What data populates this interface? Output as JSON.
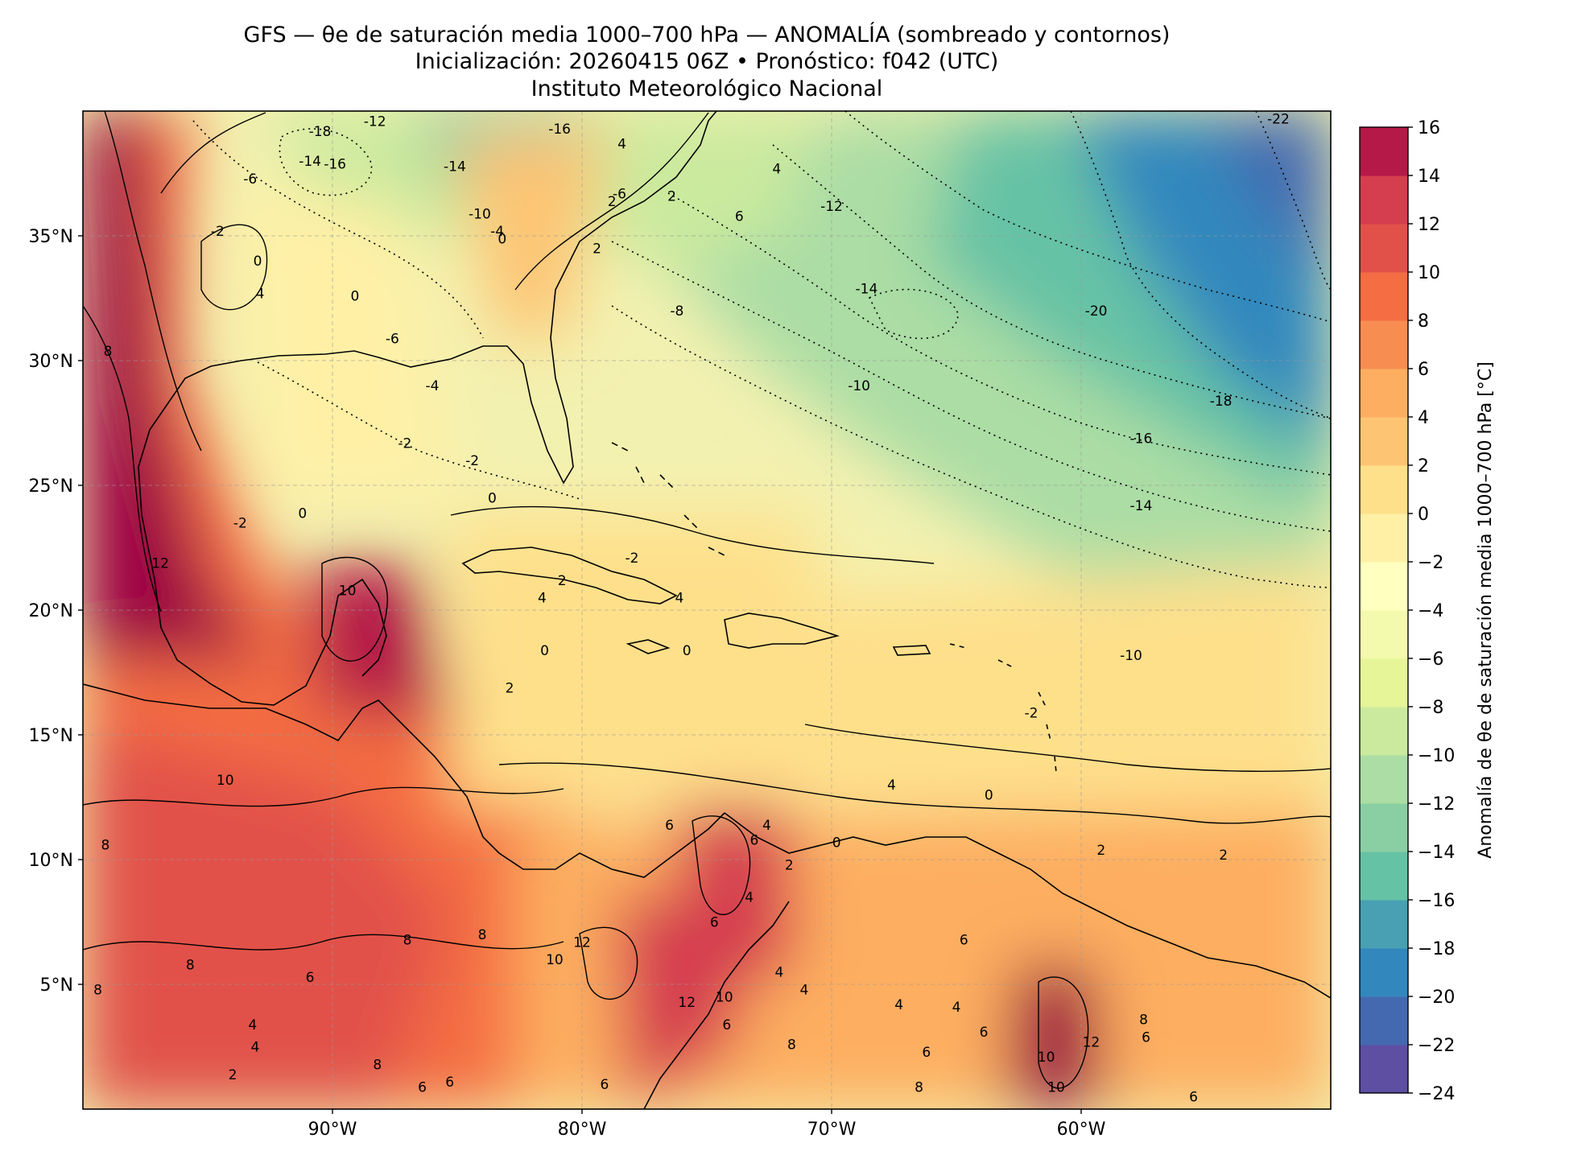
{
  "title": {
    "line1": "GFS — θe de saturación media 1000–700 hPa — ANOMALÍA (sombreado y contornos)",
    "line2": "Inicialización: 20260415 06Z   •   Pronóstico: f042 (UTC)",
    "line3": "Instituto Meteorológico Nacional"
  },
  "map": {
    "extent": {
      "lon_min": -100,
      "lon_max": -50,
      "lat_min": 0,
      "lat_max": 40
    },
    "lat_ticks": [
      {
        "value": 5,
        "label": "5°N"
      },
      {
        "value": 10,
        "label": "10°N"
      },
      {
        "value": 15,
        "label": "15°N"
      },
      {
        "value": 20,
        "label": "20°N"
      },
      {
        "value": 25,
        "label": "25°N"
      },
      {
        "value": 30,
        "label": "30°N"
      },
      {
        "value": 35,
        "label": "35°N"
      }
    ],
    "lon_ticks": [
      {
        "value": -90,
        "label": "90°W"
      },
      {
        "value": -80,
        "label": "80°W"
      },
      {
        "value": -70,
        "label": "70°W"
      },
      {
        "value": -60,
        "label": "60°W"
      }
    ],
    "gridlines": true
  },
  "colorbar": {
    "label": "Anomalía de θe de saturación media 1000–700 hPa [°C]",
    "levels": [
      -24,
      -22,
      -20,
      -18,
      -16,
      -14,
      -12,
      -10,
      -8,
      -6,
      -4,
      -2,
      0,
      2,
      4,
      6,
      8,
      10,
      12,
      14,
      16
    ],
    "colors": [
      "#5e4fa2",
      "#4469b0",
      "#3288bd",
      "#48a0b2",
      "#66c2a5",
      "#8acfa4",
      "#abdda4",
      "#cbea9e",
      "#e6f598",
      "#f4faad",
      "#ffffbf",
      "#fff0a6",
      "#fee08b",
      "#fdc473",
      "#fdae61",
      "#f88d52",
      "#f46d43",
      "#e1514a",
      "#d53e4f",
      "#b41947",
      "#9e0142"
    ],
    "tick_labels": [
      "−24",
      "−22",
      "−20",
      "−18",
      "−16",
      "−14",
      "−12",
      "−10",
      "−8",
      "−6",
      "−4",
      "−2",
      "0",
      "2",
      "4",
      "6",
      "8",
      "10",
      "12",
      "14",
      "16"
    ]
  },
  "contour_labels": [
    {
      "lon": -93.3,
      "lat": 37.1,
      "text": "-6"
    },
    {
      "lon": -90.5,
      "lat": 39.0,
      "text": "-18"
    },
    {
      "lon": -88.3,
      "lat": 39.4,
      "text": "-12"
    },
    {
      "lon": -90.9,
      "lat": 37.8,
      "text": "-14"
    },
    {
      "lon": -89.9,
      "lat": 37.7,
      "text": "-16"
    },
    {
      "lon": -85.1,
      "lat": 37.6,
      "text": "-14"
    },
    {
      "lon": -80.9,
      "lat": 39.1,
      "text": "-16"
    },
    {
      "lon": -84.1,
      "lat": 35.7,
      "text": "-10"
    },
    {
      "lon": -83.4,
      "lat": 35.0,
      "text": "-4"
    },
    {
      "lon": -83.2,
      "lat": 34.7,
      "text": "0"
    },
    {
      "lon": -94.6,
      "lat": 35.0,
      "text": "-2"
    },
    {
      "lon": -93.0,
      "lat": 33.8,
      "text": "0"
    },
    {
      "lon": -92.9,
      "lat": 32.5,
      "text": "4"
    },
    {
      "lon": -89.1,
      "lat": 32.4,
      "text": "0"
    },
    {
      "lon": -87.6,
      "lat": 30.7,
      "text": "-6"
    },
    {
      "lon": -86.0,
      "lat": 28.8,
      "text": "-4"
    },
    {
      "lon": -87.1,
      "lat": 26.5,
      "text": "-2"
    },
    {
      "lon": -84.4,
      "lat": 25.8,
      "text": "-2"
    },
    {
      "lon": -83.6,
      "lat": 24.3,
      "text": "0"
    },
    {
      "lon": -93.7,
      "lat": 23.3,
      "text": "-2"
    },
    {
      "lon": -91.2,
      "lat": 23.7,
      "text": "0"
    },
    {
      "lon": -99.0,
      "lat": 30.2,
      "text": "8"
    },
    {
      "lon": -78.5,
      "lat": 36.5,
      "text": "-6"
    },
    {
      "lon": -78.8,
      "lat": 36.2,
      "text": "2"
    },
    {
      "lon": -79.4,
      "lat": 34.3,
      "text": "2"
    },
    {
      "lon": -78.4,
      "lat": 38.5,
      "text": "4"
    },
    {
      "lon": -76.4,
      "lat": 36.4,
      "text": "2"
    },
    {
      "lon": -72.2,
      "lat": 37.5,
      "text": "4"
    },
    {
      "lon": -73.7,
      "lat": 35.6,
      "text": "6"
    },
    {
      "lon": -70.0,
      "lat": 36.0,
      "text": "-12"
    },
    {
      "lon": -76.2,
      "lat": 31.8,
      "text": "-8"
    },
    {
      "lon": -68.6,
      "lat": 32.7,
      "text": "-14"
    },
    {
      "lon": -59.4,
      "lat": 31.8,
      "text": "-20"
    },
    {
      "lon": -52.1,
      "lat": 39.5,
      "text": "-22"
    },
    {
      "lon": -68.9,
      "lat": 28.8,
      "text": "-10"
    },
    {
      "lon": -54.4,
      "lat": 28.2,
      "text": "-18"
    },
    {
      "lon": -57.6,
      "lat": 26.7,
      "text": "-16"
    },
    {
      "lon": -57.6,
      "lat": 24.0,
      "text": "-14"
    },
    {
      "lon": -58.0,
      "lat": 18.0,
      "text": "-10"
    },
    {
      "lon": -62.0,
      "lat": 15.7,
      "text": "-2"
    },
    {
      "lon": -80.8,
      "lat": 21.0,
      "text": "2"
    },
    {
      "lon": -81.6,
      "lat": 20.3,
      "text": "4"
    },
    {
      "lon": -81.5,
      "lat": 18.2,
      "text": "0"
    },
    {
      "lon": -82.9,
      "lat": 16.7,
      "text": "2"
    },
    {
      "lon": -76.1,
      "lat": 20.3,
      "text": "4"
    },
    {
      "lon": -75.8,
      "lat": 18.2,
      "text": "0"
    },
    {
      "lon": -78.0,
      "lat": 21.9,
      "text": "-2"
    },
    {
      "lon": -89.4,
      "lat": 20.6,
      "text": "10"
    },
    {
      "lon": -96.9,
      "lat": 21.7,
      "text": "12"
    },
    {
      "lon": -94.3,
      "lat": 13.0,
      "text": "10"
    },
    {
      "lon": -99.1,
      "lat": 10.4,
      "text": "8"
    },
    {
      "lon": -95.7,
      "lat": 5.6,
      "text": "8"
    },
    {
      "lon": -87.0,
      "lat": 6.6,
      "text": "8"
    },
    {
      "lon": -90.9,
      "lat": 5.1,
      "text": "6"
    },
    {
      "lon": -99.4,
      "lat": 4.6,
      "text": "8"
    },
    {
      "lon": -93.2,
      "lat": 3.2,
      "text": "4"
    },
    {
      "lon": -93.1,
      "lat": 2.3,
      "text": "4"
    },
    {
      "lon": -94.0,
      "lat": 1.2,
      "text": "2"
    },
    {
      "lon": -88.2,
      "lat": 1.6,
      "text": "8"
    },
    {
      "lon": -84.0,
      "lat": 6.8,
      "text": "8"
    },
    {
      "lon": -81.1,
      "lat": 5.8,
      "text": "10"
    },
    {
      "lon": -80.0,
      "lat": 6.5,
      "text": "12"
    },
    {
      "lon": -75.8,
      "lat": 4.1,
      "text": "12"
    },
    {
      "lon": -74.3,
      "lat": 4.3,
      "text": "10"
    },
    {
      "lon": -76.5,
      "lat": 11.2,
      "text": "6"
    },
    {
      "lon": -74.7,
      "lat": 7.3,
      "text": "6"
    },
    {
      "lon": -72.6,
      "lat": 11.2,
      "text": "4"
    },
    {
      "lon": -71.7,
      "lat": 9.6,
      "text": "2"
    },
    {
      "lon": -73.1,
      "lat": 10.6,
      "text": "6"
    },
    {
      "lon": -73.3,
      "lat": 8.3,
      "text": "4"
    },
    {
      "lon": -72.1,
      "lat": 5.3,
      "text": "4"
    },
    {
      "lon": -71.1,
      "lat": 4.6,
      "text": "4"
    },
    {
      "lon": -69.8,
      "lat": 10.5,
      "text": "0"
    },
    {
      "lon": -67.6,
      "lat": 12.8,
      "text": "4"
    },
    {
      "lon": -63.7,
      "lat": 12.4,
      "text": "0"
    },
    {
      "lon": -59.2,
      "lat": 10.2,
      "text": "2"
    },
    {
      "lon": -54.3,
      "lat": 10.0,
      "text": "2"
    },
    {
      "lon": -67.3,
      "lat": 4.0,
      "text": "4"
    },
    {
      "lon": -64.7,
      "lat": 6.6,
      "text": "6"
    },
    {
      "lon": -65.0,
      "lat": 3.9,
      "text": "4"
    },
    {
      "lon": -66.2,
      "lat": 2.1,
      "text": "6"
    },
    {
      "lon": -63.9,
      "lat": 2.9,
      "text": "6"
    },
    {
      "lon": -61.4,
      "lat": 1.9,
      "text": "10"
    },
    {
      "lon": -59.6,
      "lat": 2.5,
      "text": "12"
    },
    {
      "lon": -57.4,
      "lat": 2.7,
      "text": "6"
    },
    {
      "lon": -57.5,
      "lat": 3.4,
      "text": "8"
    },
    {
      "lon": -55.5,
      "lat": 0.3,
      "text": "6"
    },
    {
      "lon": -71.6,
      "lat": 2.4,
      "text": "8"
    },
    {
      "lon": -74.2,
      "lat": 3.2,
      "text": "6"
    },
    {
      "lon": -79.1,
      "lat": 0.8,
      "text": "6"
    },
    {
      "lon": -85.3,
      "lat": 0.9,
      "text": "6"
    },
    {
      "lon": -86.4,
      "lat": 0.7,
      "text": "6"
    },
    {
      "lon": -66.5,
      "lat": 0.7,
      "text": "8"
    },
    {
      "lon": -61.0,
      "lat": 0.7,
      "text": "10"
    }
  ]
}
